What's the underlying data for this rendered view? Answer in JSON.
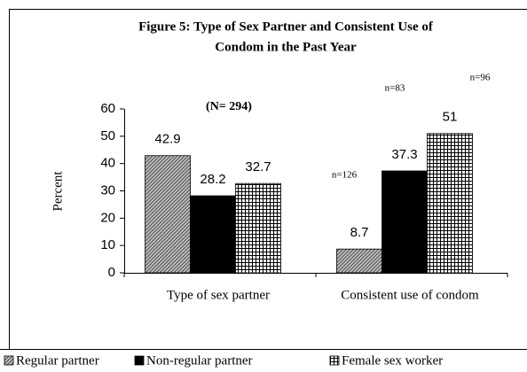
{
  "chart_data": {
    "type": "bar",
    "title": [
      "Figure 5: Type of Sex Partner and Consistent Use of",
      "Condom in the Past Year"
    ],
    "y_label": "Percent",
    "categories": [
      "Type of sex partner",
      "Consistent use of condom"
    ],
    "series": [
      {
        "name": "Regular partner",
        "color": "#808080",
        "pattern": "diagonal",
        "values": [
          42.9,
          8.7
        ]
      },
      {
        "name": "Non-regular partner",
        "color": "#000000",
        "pattern": "solid",
        "values": [
          28.2,
          37.3
        ]
      },
      {
        "name": "Female sex worker",
        "color": "#000000",
        "pattern": "grid",
        "values": [
          32.7,
          51
        ]
      }
    ],
    "annotations": [
      "(N= 294)",
      "n=126",
      "n=83",
      "n=96"
    ],
    "ylim": [
      0,
      60
    ],
    "yticks": [
      0,
      10,
      20,
      30,
      40,
      50,
      60
    ],
    "legend": "bottom"
  }
}
